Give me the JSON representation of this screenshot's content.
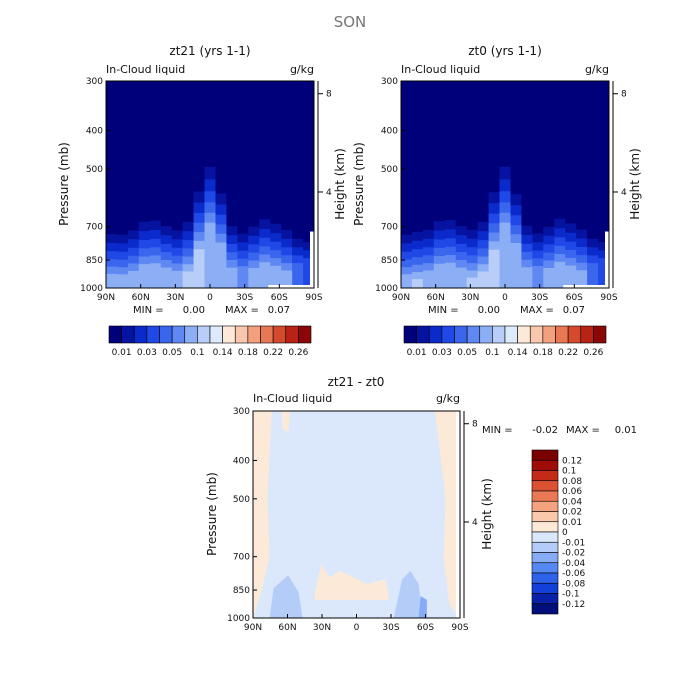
{
  "figure_title": "SON",
  "palettes": {
    "sequential": [
      "#00007a",
      "#0612a0",
      "#0a2acc",
      "#1f48e6",
      "#3a66ee",
      "#5f88f2",
      "#8caef5",
      "#b8cef9",
      "#ddeafc",
      "#fde8da",
      "#f9c7ad",
      "#f3a07e",
      "#e87753",
      "#d5492d",
      "#b82315",
      "#8b0606"
    ],
    "diverging": [
      "#001078",
      "#0722a8",
      "#1240d8",
      "#2f62ea",
      "#5588f2",
      "#87acf6",
      "#b4ccf8",
      "#dbe8fc",
      "#fde9d8",
      "#f9c9ab",
      "#f4a37e",
      "#ea7a55",
      "#db5232",
      "#c32b18",
      "#9e0c08",
      "#7a0000"
    ]
  },
  "chart_data": [
    {
      "id": "zt21",
      "type": "heatmap",
      "title": "zt21 (yrs 1-1)",
      "subtitle_left": "In-Cloud liquid",
      "units": "g/kg",
      "xlabel": "",
      "ylabel": "Pressure (mb)",
      "ylabel_right": "Height (km)",
      "x_ticks": [
        "90N",
        "60N",
        "30N",
        "0",
        "30S",
        "60S",
        "90S"
      ],
      "y_ticks": [
        300,
        400,
        500,
        700,
        850,
        1000
      ],
      "y_ticks_right": [
        8,
        4
      ],
      "ylim": [
        1000,
        300
      ],
      "stats": {
        "min_label": "MIN =",
        "min": "0.00",
        "max_label": "MAX =",
        "max": "0.07"
      },
      "colorbar_labels": [
        "0.01",
        "0.03",
        "0.05",
        "0.1",
        "0.14",
        "0.18",
        "0.22",
        "0.26"
      ],
      "peak_levels": [
        0.06,
        0.055,
        0.058,
        0.062,
        0.058,
        0.062,
        0.064,
        0.07,
        0.068,
        0.058,
        0.062,
        0.055,
        0.052,
        0.06,
        0.062,
        0.055,
        0.06,
        0.04,
        0.03
      ]
    },
    {
      "id": "zt0",
      "type": "heatmap",
      "title": "zt0 (yrs 1-1)",
      "subtitle_left": "In-Cloud liquid",
      "units": "g/kg",
      "xlabel": "",
      "ylabel": "Pressure (mb)",
      "ylabel_right": "Height (km)",
      "x_ticks": [
        "90N",
        "60N",
        "30N",
        "0",
        "30S",
        "60S",
        "90S"
      ],
      "y_ticks": [
        300,
        400,
        500,
        700,
        850,
        1000
      ],
      "y_ticks_right": [
        8,
        4
      ],
      "ylim": [
        1000,
        300
      ],
      "stats": {
        "min_label": "MIN =",
        "min": "0.00",
        "max_label": "MAX =",
        "max": "0.07"
      },
      "colorbar_labels": [
        "0.01",
        "0.03",
        "0.05",
        "0.1",
        "0.14",
        "0.18",
        "0.22",
        "0.26"
      ],
      "peak_levels": [
        0.058,
        0.066,
        0.06,
        0.064,
        0.06,
        0.062,
        0.066,
        0.07,
        0.066,
        0.058,
        0.06,
        0.056,
        0.053,
        0.06,
        0.064,
        0.056,
        0.061,
        0.04,
        0.03
      ]
    },
    {
      "id": "diff",
      "type": "heatmap",
      "title": "zt21 - zt0",
      "subtitle_left": "In-Cloud liquid",
      "units": "g/kg",
      "xlabel": "",
      "ylabel": "Pressure (mb)",
      "ylabel_right": "Height (km)",
      "x_ticks": [
        "90N",
        "60N",
        "30N",
        "0",
        "30S",
        "60S",
        "90S"
      ],
      "y_ticks": [
        300,
        400,
        500,
        700,
        850,
        1000
      ],
      "y_ticks_right": [
        8,
        4
      ],
      "ylim": [
        1000,
        300
      ],
      "stats": {
        "min_label": "MIN =",
        "min": "-0.02",
        "max_label": "MAX =",
        "max": "0.01"
      },
      "colorbar_labels": [
        "0.12",
        "0.1",
        "0.08",
        "0.06",
        "0.04",
        "0.02",
        "0.01",
        "0",
        "-0.01",
        "-0.02",
        "-0.04",
        "-0.06",
        "-0.08",
        "-0.1",
        "-0.12"
      ]
    }
  ]
}
